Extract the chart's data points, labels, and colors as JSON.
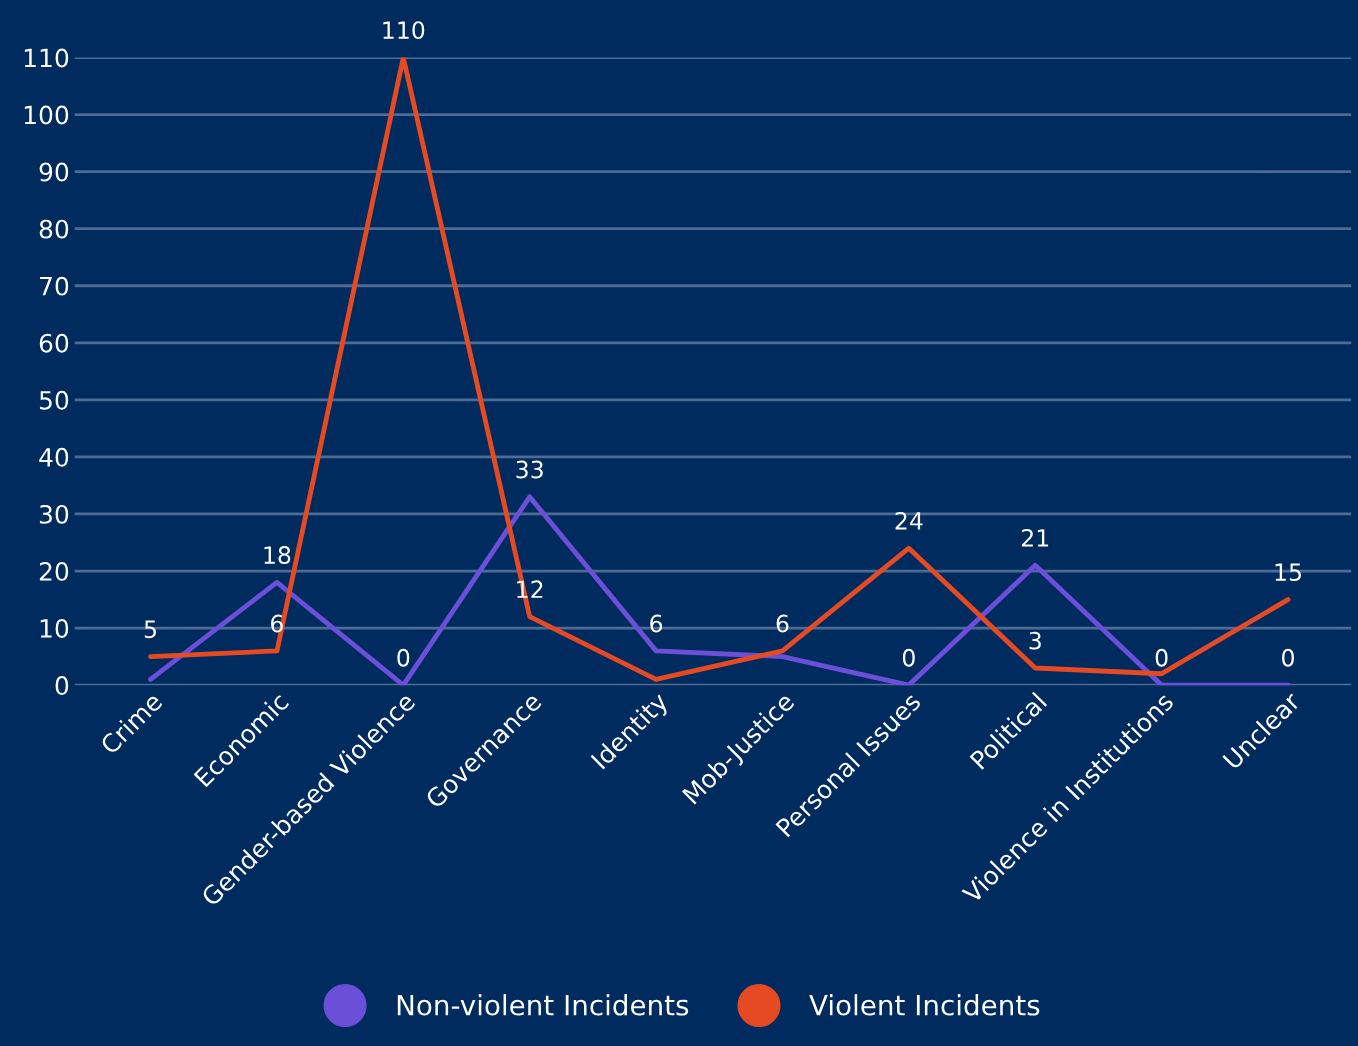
{
  "chart_data": {
    "type": "line",
    "categories": [
      "Crime",
      "Economic",
      "Gender-based Violence",
      "Governance",
      "Identity",
      "Mob-Justice",
      "Personal Issues",
      "Political",
      "Violence in Institutions",
      "Unclear"
    ],
    "series": [
      {
        "name": "Non-violent Incidents",
        "color": "#6b4fd9",
        "values": [
          1,
          18,
          0,
          33,
          6,
          5,
          0,
          21,
          0,
          0
        ],
        "value_labels": [
          null,
          "18",
          "0",
          "33",
          "6",
          null,
          "0",
          "21",
          "0",
          "0"
        ]
      },
      {
        "name": "Violent Incidents",
        "color": "#e54a23",
        "values": [
          5,
          6,
          110,
          12,
          1,
          6,
          24,
          3,
          2,
          15
        ],
        "value_labels": [
          "5",
          "6",
          "110",
          "12",
          null,
          "6",
          "24",
          "3",
          null,
          "15"
        ]
      }
    ],
    "ylim": [
      0,
      110
    ],
    "yticks": [
      0,
      10,
      20,
      30,
      40,
      50,
      60,
      70,
      80,
      90,
      100,
      110
    ],
    "grid": "y",
    "legend": "bottom",
    "marker": "none",
    "line_style": "solid"
  }
}
